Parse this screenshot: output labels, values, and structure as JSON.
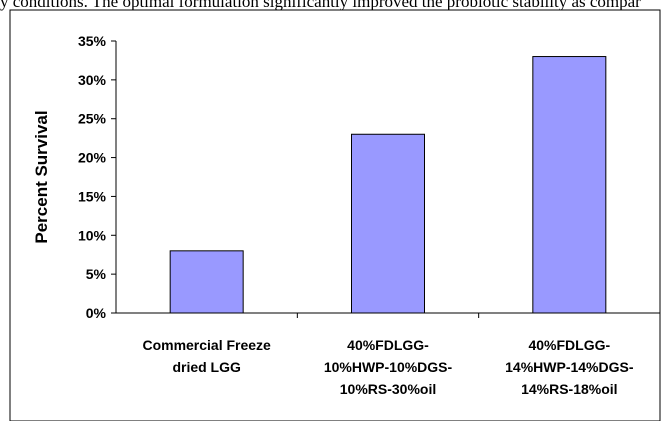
{
  "page_text": "y conditions. The optimal formulation significantly improved the probiotic stability as compar",
  "chart_data": {
    "type": "bar",
    "categories": [
      [
        "Commercial Freeze",
        "dried LGG"
      ],
      [
        "40%FDLGG-",
        "10%HWP-10%DGS-",
        "10%RS-30%oil"
      ],
      [
        "40%FDLGG-",
        "14%HWP-14%DGS-",
        "14%RS-18%oil"
      ]
    ],
    "values": [
      8,
      23,
      33
    ],
    "ylabel": "Percent Survival",
    "xlabel": "",
    "ylim": [
      0,
      35
    ],
    "yticks": [
      "0%",
      "5%",
      "10%",
      "15%",
      "20%",
      "25%",
      "30%",
      "35%"
    ],
    "bar_color": "#9999ff",
    "bar_outline": "#000000",
    "grid": false,
    "legend": "none"
  }
}
